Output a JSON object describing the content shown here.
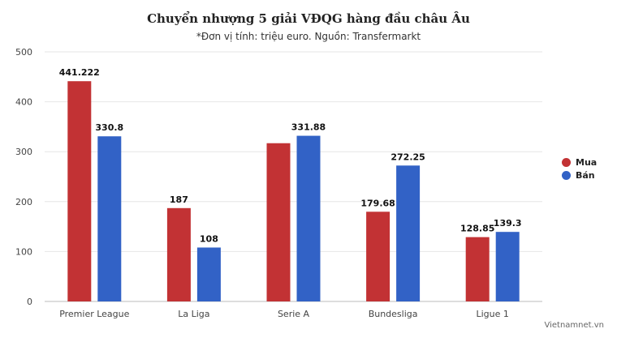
{
  "chart_data": {
    "type": "bar",
    "title": "Chuyển nhượng 5 giải VĐQG hàng đầu châu Âu",
    "subtitle": "*Đơn vị tính: triệu euro. Nguồn: Transfermarkt",
    "categories": [
      "Premier League",
      "La Liga",
      "Serie A",
      "Bundesliga",
      "Ligue 1"
    ],
    "series": [
      {
        "name": "Mua",
        "color": "#c23234",
        "values": [
          441.222,
          187,
          317,
          179.68,
          128.85
        ],
        "labels": [
          "441.222",
          "187",
          "",
          "179.68",
          "128.85"
        ]
      },
      {
        "name": "Bán",
        "color": "#3262c6",
        "values": [
          330.8,
          108,
          331.88,
          272.25,
          139.3
        ],
        "labels": [
          "330.8",
          "108",
          "331.88",
          "272.25",
          "139.3"
        ]
      }
    ],
    "yticks": [
      "0",
      "100",
      "200",
      "300",
      "400",
      "500"
    ],
    "ylim": [
      0,
      500
    ],
    "grid": true,
    "legend": "right",
    "xlabel": "",
    "ylabel": ""
  },
  "credit": "Vietnamnet.vn"
}
